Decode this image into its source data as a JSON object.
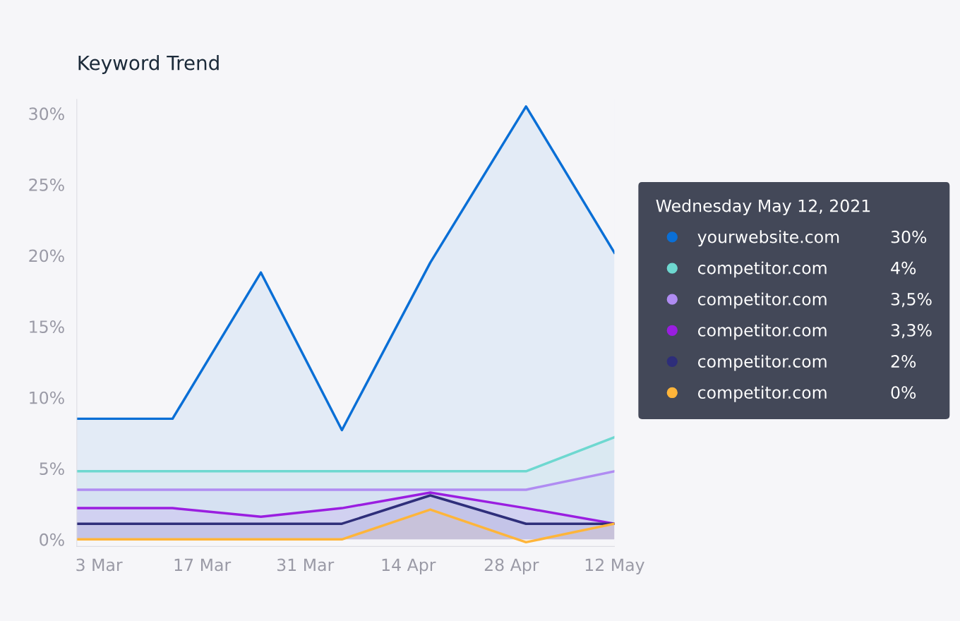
{
  "chart_data": {
    "type": "area",
    "title": "Keyword Trend",
    "legend_title": "Wednesday May 12, 2021",
    "x": [
      "2021-02-28",
      "2021-03-13",
      "2021-03-25",
      "2021-04-05",
      "2021-04-17",
      "2021-04-30",
      "2021-05-12"
    ],
    "xlim": [
      "2021-02-28",
      "2021-05-12"
    ],
    "xticks": [
      {
        "value": "2021-03-03",
        "label": "3 Mar"
      },
      {
        "value": "2021-03-17",
        "label": "17 Mar"
      },
      {
        "value": "2021-03-31",
        "label": "31 Mar"
      },
      {
        "value": "2021-04-14",
        "label": "14 Apr"
      },
      {
        "value": "2021-04-28",
        "label": "28 Apr"
      },
      {
        "value": "2021-05-12",
        "label": "12 May"
      }
    ],
    "ylim": [
      -0.5,
      31
    ],
    "yticks": [
      {
        "value": 0,
        "label": "0%"
      },
      {
        "value": 5,
        "label": "5%"
      },
      {
        "value": 10,
        "label": "10%"
      },
      {
        "value": 15,
        "label": "15%"
      },
      {
        "value": 20,
        "label": "20%"
      },
      {
        "value": 25,
        "label": "25%"
      },
      {
        "value": 30,
        "label": "30%"
      }
    ],
    "series": [
      {
        "name": "yourwebsite.com",
        "color": "#0a6fd6",
        "values": [
          8.5,
          8.5,
          18.8,
          7.7,
          19.5,
          30.5,
          20.2
        ]
      },
      {
        "name": "competitor.com",
        "color": "#6ed8d0",
        "values": [
          4.8,
          4.8,
          4.8,
          4.8,
          4.8,
          4.8,
          7.2
        ]
      },
      {
        "name": "competitor.com",
        "color": "#b08cf2",
        "values": [
          3.5,
          3.5,
          3.5,
          3.5,
          3.5,
          3.5,
          4.8
        ]
      },
      {
        "name": "competitor.com",
        "color": "#9a1ee0",
        "values": [
          2.2,
          2.2,
          1.6,
          2.2,
          3.3,
          2.2,
          1.1
        ]
      },
      {
        "name": "competitor.com",
        "color": "#2e2e7a",
        "values": [
          1.1,
          1.1,
          1.1,
          1.1,
          3.1,
          1.1,
          1.1
        ]
      },
      {
        "name": "competitor.com",
        "color": "#ffb53a",
        "values": [
          0,
          0,
          0,
          0,
          2.1,
          -0.2,
          1.1
        ]
      }
    ],
    "annotations": [
      "30%",
      "4%",
      "3,5%",
      "3,3%",
      "2%",
      "0%"
    ],
    "legend": "right",
    "grid": false
  }
}
